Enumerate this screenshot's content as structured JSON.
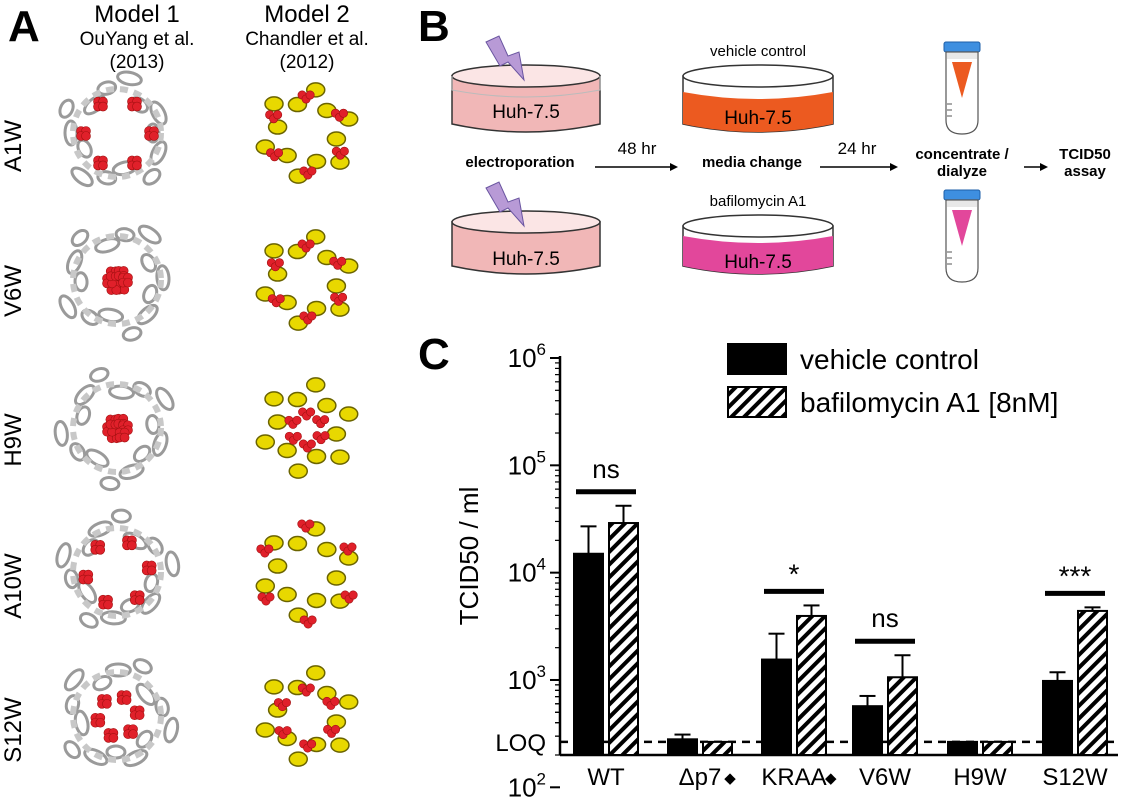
{
  "panel_a": {
    "letter": "A",
    "model1": {
      "title": "Model 1",
      "line1": "OuYang et al.",
      "line2": "(2013)"
    },
    "model2": {
      "title": "Model 2",
      "line1": "Chandler et al.",
      "line2": "(2012)"
    },
    "rows": [
      "A1W",
      "V6W",
      "H9W",
      "A10W",
      "S12W"
    ],
    "colors": {
      "model1_helix": "#b8b8b8",
      "model2_helix": "#e8d800",
      "residue": "#e0202a"
    }
  },
  "panel_b": {
    "letter": "B",
    "dish_label": "Huh-7.5",
    "vehicle_label": "vehicle control",
    "bafilomycin_label": "bafilomycin A1",
    "step_electroporation": "electroporation",
    "time1": "48 hr",
    "step_media_change": "media change",
    "time2": "24 hr",
    "step_concentrate_1": "concentrate /",
    "step_concentrate_2": "dialyze",
    "step_tcid_1": "TCID50",
    "step_tcid_2": "assay",
    "colors": {
      "dish_pink": "#f1b7b7",
      "vehicle_orange": "#ec5a20",
      "bafilomycin_magenta": "#e2479b",
      "tube_cap": "#3e8fe0",
      "bolt": "#b89ad6"
    }
  },
  "chart_data": {
    "panel_letter": "C",
    "type": "bar",
    "y_scale": "log",
    "ylabel": "TCID50 / ml",
    "ylim": [
      200,
      1000000
    ],
    "ytick_base": "10",
    "ytick_exponents": [
      "2",
      "3",
      "4",
      "5",
      "6"
    ],
    "categories": [
      "WT",
      "Δp7",
      "KRAA",
      "V6W",
      "H9W",
      "S12W"
    ],
    "category_markers": [
      "",
      "◆",
      "◆",
      "",
      "",
      ""
    ],
    "series": [
      {
        "name": "vehicle control",
        "fill": "solid",
        "color": "#000000",
        "values": [
          15000,
          280,
          1550,
          570,
          265,
          980
        ],
        "errors": [
          27000,
          310,
          2700,
          710,
          265,
          1180
        ]
      },
      {
        "name": "bafilomycin A1 [8nM]",
        "fill": "hatched",
        "color": "#000000",
        "values": [
          29000,
          265,
          3950,
          1060,
          265,
          4400
        ],
        "errors": [
          42000,
          265,
          4950,
          1700,
          265,
          4750
        ]
      }
    ],
    "significance": [
      "ns",
      "",
      "*",
      "ns",
      "",
      "***"
    ],
    "loq_label": "LOQ",
    "loq_value": 265,
    "legend_position": "top-right"
  }
}
